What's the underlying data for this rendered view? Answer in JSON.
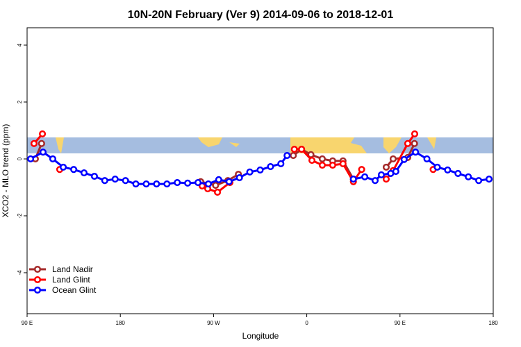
{
  "chart_data": {
    "type": "line",
    "title": "10N-20N February (Ver 9)   2014-09-06 to 2018-12-01",
    "x_label": "Longitude",
    "y_label": "XCO2 - MLO trend (ppm)",
    "xlim": [
      90,
      540
    ],
    "ylim": [
      -5.44,
      4.61
    ],
    "xticks": [
      {
        "value": 90,
        "label": "90 E"
      },
      {
        "value": 180,
        "label": "180"
      },
      {
        "value": 270,
        "label": "90 W"
      },
      {
        "value": 360,
        "label": "0"
      },
      {
        "value": 450,
        "label": "90 E"
      },
      {
        "value": 540,
        "label": "180"
      }
    ],
    "yticks": [
      -4,
      -2,
      0,
      2,
      4
    ],
    "legend": "bottomleft",
    "series": [
      {
        "name": "Land Nadir",
        "color": "#a52a2a",
        "x": [
          98,
          104,
          null,
          257.6,
          272,
          283.8,
          294,
          null,
          347,
          355,
          364,
          375,
          385,
          395,
          405,
          null,
          436.7,
          443.4,
          457.5,
          464
        ],
        "values": [
          0,
          0.54,
          null,
          -0.8,
          -0.93,
          -0.76,
          -0.54,
          null,
          0.12,
          0.34,
          0.15,
          0,
          -0.07,
          -0.07,
          -0.71,
          null,
          -0.29,
          0,
          0.05,
          0.54
        ]
      },
      {
        "name": "Land Glint",
        "color": "#ff0000",
        "x": [
          96.7,
          104.8,
          null,
          121.5,
          null,
          259,
          264.4,
          273.8,
          285.8,
          null,
          348,
          355,
          365,
          375,
          385,
          395,
          405,
          413,
          null,
          436.7,
          443.4,
          457.5,
          464.2,
          null,
          482
        ],
        "values": [
          0.54,
          0.88,
          null,
          -0.37,
          null,
          -0.95,
          -1.05,
          -1.17,
          -0.83,
          null,
          0.34,
          0.34,
          -0.05,
          -0.22,
          -0.22,
          -0.17,
          -0.8,
          -0.37,
          null,
          -0.71,
          -0.41,
          0.54,
          0.88,
          null,
          -0.37
        ]
      },
      {
        "name": "Ocean Glint",
        "color": "#0000ff",
        "x": [
          93.4,
          105.4,
          114.8,
          124.9,
          135,
          145,
          155,
          165,
          175,
          185,
          195,
          205,
          215,
          225,
          235,
          245,
          255,
          265,
          275,
          285,
          295,
          305,
          315,
          325,
          335,
          341,
          null,
          405,
          416,
          426,
          432,
          441,
          446,
          454,
          465,
          476,
          486,
          496,
          506,
          516,
          526,
          536
        ],
        "values": [
          0,
          0.24,
          0,
          -0.29,
          -0.37,
          -0.49,
          -0.61,
          -0.76,
          -0.71,
          -0.76,
          -0.88,
          -0.88,
          -0.88,
          -0.88,
          -0.83,
          -0.85,
          -0.83,
          -0.88,
          -0.73,
          -0.8,
          -0.66,
          -0.46,
          -0.39,
          -0.27,
          -0.17,
          0.12,
          null,
          -0.71,
          -0.63,
          -0.76,
          -0.56,
          -0.51,
          -0.44,
          -0.02,
          0.24,
          0,
          -0.29,
          -0.39,
          -0.51,
          -0.63,
          -0.76,
          -0.71
        ]
      }
    ]
  }
}
